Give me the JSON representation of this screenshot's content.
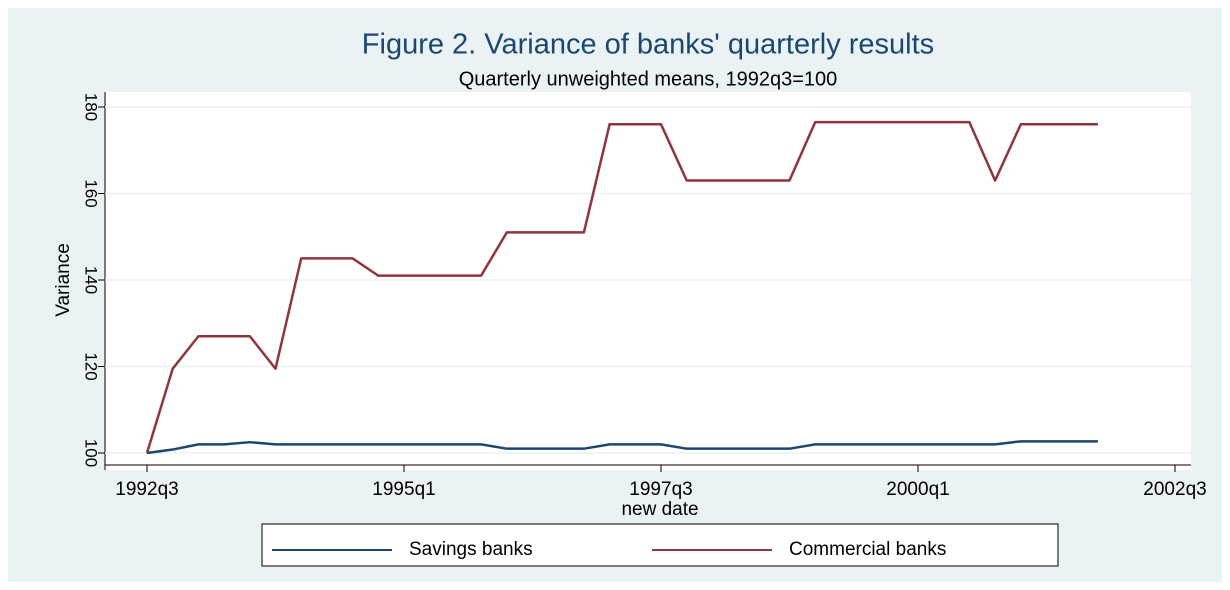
{
  "chart_data": {
    "type": "line",
    "title": "Figure 2. Variance of banks' quarterly results",
    "subtitle": "Quarterly unweighted means, 1992q3=100",
    "x_label": "new date",
    "y_label": "Variance",
    "x": [
      "1992q3",
      "1992q4",
      "1993q1",
      "1993q2",
      "1993q3",
      "1993q4",
      "1994q1",
      "1994q2",
      "1994q3",
      "1994q4",
      "1995q1",
      "1995q2",
      "1995q3",
      "1995q4",
      "1996q1",
      "1996q2",
      "1996q3",
      "1996q4",
      "1997q1",
      "1997q2",
      "1997q3",
      "1997q4",
      "1998q1",
      "1998q2",
      "1998q3",
      "1998q4",
      "1999q1",
      "1999q2",
      "1999q3",
      "1999q4",
      "2000q1",
      "2000q2",
      "2000q3",
      "2000q4",
      "2001q1",
      "2001q2",
      "2001q3",
      "2001q4"
    ],
    "series": [
      {
        "name": "Savings banks",
        "color": "#1a476f",
        "values": [
          100,
          100.8,
          102,
          102,
          102.5,
          102,
          102,
          102,
          102,
          102,
          102,
          102,
          102,
          102,
          101,
          101,
          101,
          101,
          102,
          102,
          102,
          101,
          101,
          101,
          101,
          101,
          102,
          102,
          102,
          102,
          102,
          102,
          102,
          102,
          102.7,
          102.7,
          102.7,
          102.7
        ]
      },
      {
        "name": "Commercial banks",
        "color": "#90353b",
        "values": [
          100,
          119.5,
          127,
          127,
          127,
          119.5,
          145,
          145,
          145,
          141,
          141,
          141,
          141,
          141,
          151,
          151,
          151,
          151,
          176,
          176,
          176,
          163,
          163,
          163,
          163,
          163,
          176.5,
          176.5,
          176.5,
          176.5,
          176.5,
          176.5,
          176.5,
          163,
          176,
          176,
          176,
          176
        ]
      }
    ],
    "xlim": [
      "1992q3",
      "2002q3"
    ],
    "xticks": [
      "1992q3",
      "1995q1",
      "1997q3",
      "2000q1",
      "2002q3"
    ],
    "ylim": [
      100,
      180
    ],
    "yticks": [
      100,
      120,
      140,
      160,
      180
    ],
    "grid": true,
    "legend": "bottom"
  }
}
